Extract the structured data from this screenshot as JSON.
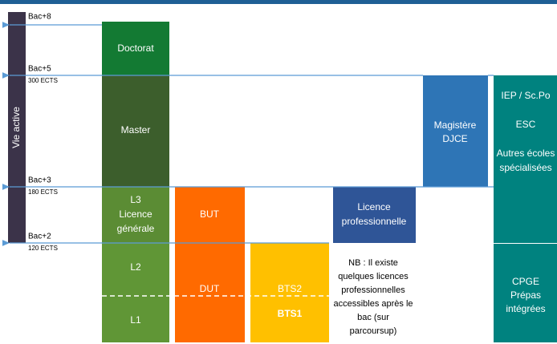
{
  "side_label": "Vie active",
  "levels": [
    {
      "label": "Bac+8"
    },
    {
      "label": "Bac+5",
      "ects": "300 ECTS"
    },
    {
      "label": "Bac+3",
      "ects": "180 ECTS"
    },
    {
      "label": "Bac+2",
      "ects": "120 ECTS"
    }
  ],
  "boxes": {
    "doctorat": "Doctorat",
    "master": "Master",
    "licence": [
      "L3",
      "Licence",
      "générale"
    ],
    "l2": "L2",
    "l1": "L1",
    "but": "BUT",
    "dut": "DUT",
    "bts2": "BTS2",
    "bts1": "BTS1",
    "licence_pro": [
      "Licence",
      "professionnelle"
    ],
    "magistere": [
      "Magistère",
      "DJCE"
    ],
    "ecoles": [
      "IEP / Sc.Po",
      "ESC",
      "Autres écoles",
      "spécialisées"
    ],
    "cpge": [
      "CPGE",
      "Prépas",
      "intégrées"
    ]
  },
  "note": [
    "NB : Il existe",
    "quelques licences",
    "professionnelles",
    "accessibles après le",
    "bac (sur",
    "parcoursup)"
  ]
}
